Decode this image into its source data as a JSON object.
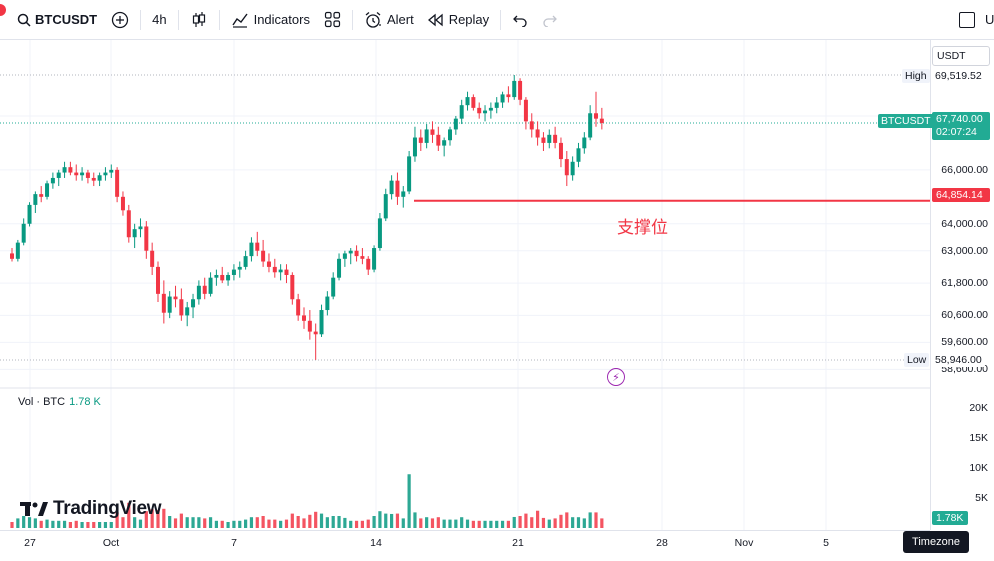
{
  "toolbar": {
    "symbol": "BTCUSDT",
    "interval": "4h",
    "indicators_label": "Indicators",
    "alert_label": "Alert",
    "replay_label": "Replay",
    "right_label": "U"
  },
  "price_scale": {
    "currency": "USDT",
    "labels": [
      "68,000.00",
      "66,000.00",
      "64,000.00",
      "63,000.00",
      "61,800.00",
      "60,600.00",
      "59,600.00",
      "58,600.00"
    ],
    "high_label": "High",
    "high_value": "69,519.52",
    "low_label": "Low",
    "low_value": "58,946.00",
    "symbol_tag": "BTCUSDT",
    "last_price": "67,740.00",
    "countdown": "02:07:24",
    "support_price": "64,854.14"
  },
  "annotation": "支撑位",
  "volume": {
    "legend_label": "Vol · BTC",
    "legend_value": "1.78 K",
    "scale_labels": [
      "20K",
      "15K",
      "10K",
      "5K"
    ],
    "current": "1.78K"
  },
  "time_axis": [
    "27",
    "Oct",
    "7",
    "14",
    "21",
    "28",
    "Nov",
    "5"
  ],
  "timezone_label": "Timezone",
  "watermark": "TradingView",
  "colors": {
    "up": "#089981",
    "down": "#f23645",
    "support": "#f23645",
    "accent": "#22ab94"
  },
  "chart_data": {
    "type": "candlestick",
    "symbol": "BTCUSDT",
    "interval": "4h",
    "price_range": [
      58600,
      69600
    ],
    "high": 69519.52,
    "low": 58946.0,
    "last": 67740.0,
    "support_level": 64854.14,
    "candles": [
      [
        62900,
        63100,
        62600,
        62700
      ],
      [
        62700,
        63400,
        62600,
        63300
      ],
      [
        63300,
        64200,
        63200,
        64000
      ],
      [
        64000,
        64800,
        63900,
        64700
      ],
      [
        64700,
        65200,
        64400,
        65100
      ],
      [
        65100,
        65400,
        64800,
        65000
      ],
      [
        65000,
        65600,
        64900,
        65500
      ],
      [
        65500,
        65900,
        65300,
        65700
      ],
      [
        65700,
        66000,
        65400,
        65900
      ],
      [
        65900,
        66300,
        65700,
        66100
      ],
      [
        66100,
        66300,
        65800,
        65900
      ],
      [
        65900,
        66200,
        65600,
        65800
      ],
      [
        65800,
        66100,
        65600,
        65900
      ],
      [
        65900,
        66000,
        65500,
        65700
      ],
      [
        65700,
        65900,
        65400,
        65600
      ],
      [
        65600,
        65900,
        65400,
        65800
      ],
      [
        65800,
        66100,
        65600,
        65900
      ],
      [
        65900,
        66200,
        65700,
        66000
      ],
      [
        66000,
        66100,
        64800,
        65000
      ],
      [
        65000,
        65200,
        64300,
        64500
      ],
      [
        64500,
        64700,
        63300,
        63500
      ],
      [
        63500,
        64000,
        63100,
        63800
      ],
      [
        63800,
        64200,
        63500,
        63900
      ],
      [
        63900,
        64100,
        62700,
        63000
      ],
      [
        63000,
        63300,
        62100,
        62400
      ],
      [
        62400,
        62600,
        61100,
        61400
      ],
      [
        61400,
        61900,
        60300,
        60700
      ],
      [
        60700,
        61500,
        60500,
        61300
      ],
      [
        61300,
        61700,
        60900,
        61200
      ],
      [
        61200,
        61600,
        60400,
        60600
      ],
      [
        60600,
        61100,
        60200,
        60900
      ],
      [
        60900,
        61400,
        60500,
        61200
      ],
      [
        61200,
        61900,
        61000,
        61700
      ],
      [
        61700,
        62000,
        61200,
        61400
      ],
      [
        61400,
        62200,
        61300,
        62000
      ],
      [
        62000,
        62300,
        61700,
        62100
      ],
      [
        62100,
        62400,
        61800,
        61900
      ],
      [
        61900,
        62200,
        61700,
        62100
      ],
      [
        62100,
        62500,
        61900,
        62300
      ],
      [
        62300,
        62600,
        62000,
        62400
      ],
      [
        62400,
        63000,
        62300,
        62800
      ],
      [
        62800,
        63500,
        62600,
        63300
      ],
      [
        63300,
        63700,
        62800,
        63000
      ],
      [
        63000,
        63400,
        62400,
        62600
      ],
      [
        62600,
        62900,
        62200,
        62400
      ],
      [
        62400,
        62700,
        62000,
        62200
      ],
      [
        62200,
        62500,
        61900,
        62300
      ],
      [
        62300,
        62500,
        61800,
        62100
      ],
      [
        62100,
        62200,
        61000,
        61200
      ],
      [
        61200,
        61400,
        60400,
        60600
      ],
      [
        60600,
        60900,
        60100,
        60400
      ],
      [
        60400,
        60800,
        59700,
        60000
      ],
      [
        60000,
        60300,
        58950,
        59900
      ],
      [
        59900,
        61000,
        59800,
        60800
      ],
      [
        60800,
        61500,
        60600,
        61300
      ],
      [
        61300,
        62200,
        61200,
        62000
      ],
      [
        62000,
        62900,
        61900,
        62700
      ],
      [
        62700,
        63000,
        62400,
        62900
      ],
      [
        62900,
        63100,
        62500,
        63000
      ],
      [
        63000,
        63200,
        62600,
        62800
      ],
      [
        62800,
        63100,
        62500,
        62700
      ],
      [
        62700,
        62800,
        62100,
        62300
      ],
      [
        62300,
        63200,
        62200,
        63100
      ],
      [
        63100,
        64400,
        63000,
        64200
      ],
      [
        64200,
        65300,
        64100,
        65100
      ],
      [
        65100,
        65800,
        64900,
        65600
      ],
      [
        65600,
        65900,
        64700,
        65000
      ],
      [
        65000,
        65400,
        64600,
        65200
      ],
      [
        65200,
        66700,
        65100,
        66500
      ],
      [
        66500,
        67600,
        66300,
        67200
      ],
      [
        67200,
        67500,
        66700,
        67000
      ],
      [
        67000,
        67700,
        66800,
        67500
      ],
      [
        67500,
        67800,
        67000,
        67300
      ],
      [
        67300,
        67600,
        66700,
        66900
      ],
      [
        66900,
        67200,
        66500,
        67100
      ],
      [
        67100,
        67600,
        66900,
        67500
      ],
      [
        67500,
        68000,
        67300,
        67900
      ],
      [
        67900,
        68600,
        67700,
        68400
      ],
      [
        68400,
        68900,
        68200,
        68700
      ],
      [
        68700,
        68800,
        68200,
        68300
      ],
      [
        68300,
        68500,
        67900,
        68100
      ],
      [
        68100,
        68400,
        67800,
        68200
      ],
      [
        68200,
        68500,
        67900,
        68300
      ],
      [
        68300,
        68700,
        68100,
        68500
      ],
      [
        68500,
        68900,
        68300,
        68800
      ],
      [
        68800,
        69100,
        68500,
        68700
      ],
      [
        68700,
        69519,
        68600,
        69300
      ],
      [
        69300,
        69400,
        68400,
        68600
      ],
      [
        68600,
        68700,
        67500,
        67800
      ],
      [
        67800,
        68100,
        67200,
        67500
      ],
      [
        67500,
        67800,
        66900,
        67200
      ],
      [
        67200,
        67400,
        66700,
        67000
      ],
      [
        67000,
        67500,
        66800,
        67300
      ],
      [
        67300,
        67600,
        66800,
        67000
      ],
      [
        67000,
        67200,
        66100,
        66400
      ],
      [
        66400,
        66700,
        65400,
        65800
      ],
      [
        65800,
        66500,
        65600,
        66300
      ],
      [
        66300,
        67000,
        66100,
        66800
      ],
      [
        66800,
        67400,
        66600,
        67200
      ],
      [
        67200,
        68400,
        67100,
        68100
      ],
      [
        68100,
        68900,
        67600,
        67900
      ],
      [
        67900,
        68300,
        67500,
        67740
      ]
    ]
  }
}
